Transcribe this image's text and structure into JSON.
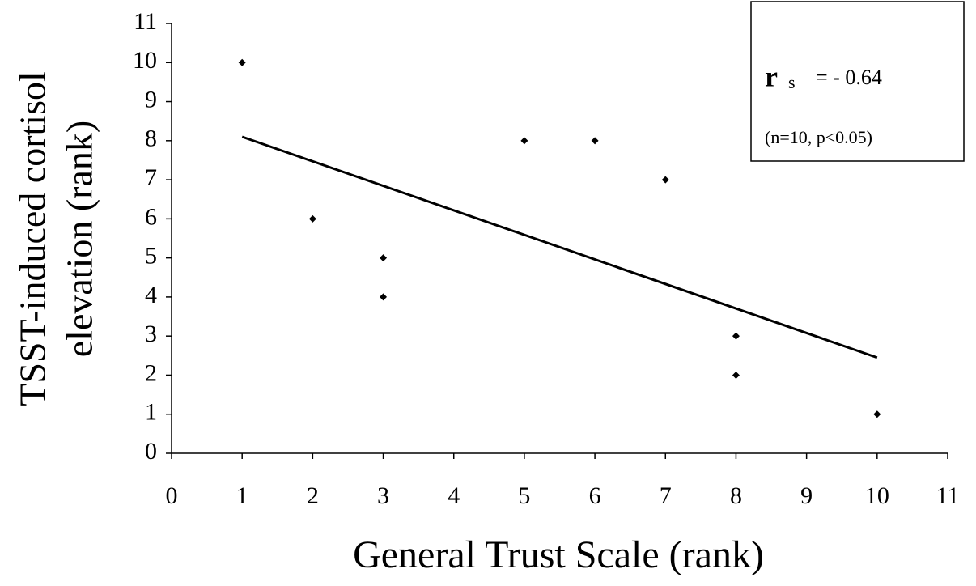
{
  "chart_data": {
    "type": "scatter",
    "x_label": "General Trust Scale (rank)",
    "y_label": [
      "TSST-induced cortisol",
      "elevation (rank)"
    ],
    "x": [
      1,
      2,
      3,
      3,
      5,
      6,
      7,
      8,
      8,
      10
    ],
    "values": [
      10,
      6,
      5,
      4,
      8,
      8,
      7,
      3,
      2,
      1
    ],
    "color": "#000000",
    "trendline": {
      "x": [
        1,
        10
      ],
      "y": [
        8.1,
        2.45
      ]
    },
    "xlim": [
      0,
      11
    ],
    "xticks": [
      0,
      1,
      2,
      3,
      4,
      5,
      6,
      7,
      8,
      9,
      10,
      11
    ],
    "ylim": [
      0,
      11
    ],
    "yticks": [
      0,
      1,
      2,
      3,
      4,
      5,
      6,
      7,
      8,
      9,
      10,
      11
    ],
    "annotation": {
      "symbol": "r",
      "subscript": "s",
      "value": "= - 0.64",
      "note": "(n=10, p<0.05)"
    }
  }
}
